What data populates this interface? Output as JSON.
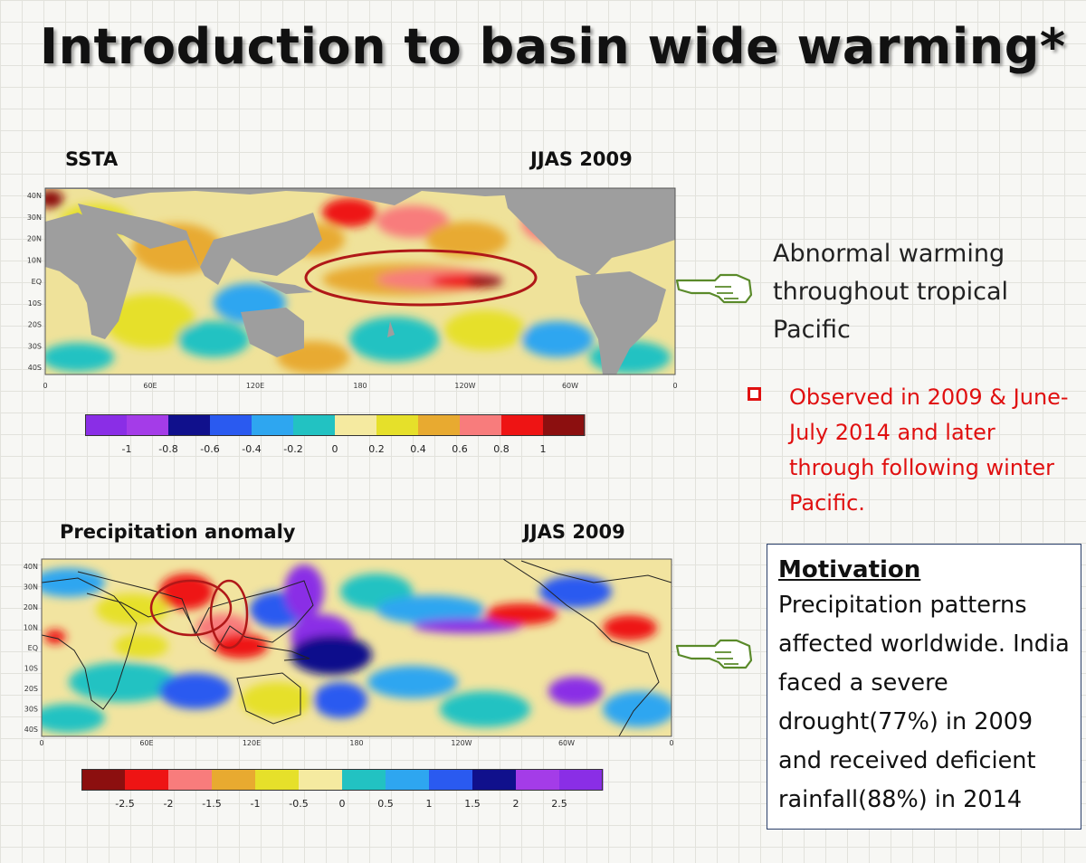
{
  "slide": {
    "title": "Introduction to basin wide warming*"
  },
  "ssta_panel": {
    "label": "SSTA",
    "period": "JJAS 2009",
    "lat_labels": [
      "40N",
      "30N",
      "20N",
      "10N",
      "EQ",
      "10S",
      "20S",
      "30S",
      "40S"
    ],
    "lon_labels": [
      "0",
      "60E",
      "120E",
      "180",
      "120W",
      "60W",
      "0"
    ],
    "colorbar": {
      "colors": [
        "#8a2ee6",
        "#a43ce8",
        "#10108c",
        "#2a5af0",
        "#2ea6f0",
        "#22c2c2",
        "#f5eaa0",
        "#e6e02a",
        "#e8aa30",
        "#f87c7c",
        "#ee1414",
        "#8c0f0f"
      ],
      "tick_labels": [
        "-1",
        "-0.8",
        "-0.6",
        "-0.4",
        "-0.2",
        "0",
        "0.2",
        "0.4",
        "0.6",
        "0.8",
        "1"
      ]
    }
  },
  "precip_panel": {
    "label": "Precipitation anomaly",
    "period": "JJAS 2009",
    "lat_labels": [
      "40N",
      "30N",
      "20N",
      "10N",
      "EQ",
      "10S",
      "20S",
      "30S",
      "40S"
    ],
    "lon_labels": [
      "0",
      "60E",
      "120E",
      "180",
      "120W",
      "60W",
      "0"
    ],
    "colorbar": {
      "colors": [
        "#8c0f0f",
        "#ee1414",
        "#f87c7c",
        "#e8aa30",
        "#e6e02a",
        "#f5eaa0",
        "#22c2c2",
        "#2ea6f0",
        "#2a5af0",
        "#10108c",
        "#a43ce8",
        "#8a2ee6"
      ],
      "tick_labels": [
        "-2.5",
        "-2",
        "-1.5",
        "-1",
        "-0.5",
        "0",
        "0.5",
        "1",
        "1.5",
        "2",
        "2.5"
      ]
    }
  },
  "abnormal_text": "Abnormal warming throughout tropical Pacific",
  "observed_text": "Observed in 2009 & June-July 2014 and later through following winter Pacific.",
  "motivation": {
    "heading": "Motivation",
    "body": "Precipitation patterns affected worldwide. India faced a severe drought(77%) in 2009 and received deficient rainfall(88%) in 2014"
  },
  "colors": {
    "land": "#9e9e9e",
    "highlight_ellipse": "#b01818",
    "observed_text": "#e01010",
    "pointer_hand": "#5a8a2a"
  },
  "icons": [
    "pointing-hand-icon",
    "checkbox-bullet-icon"
  ]
}
